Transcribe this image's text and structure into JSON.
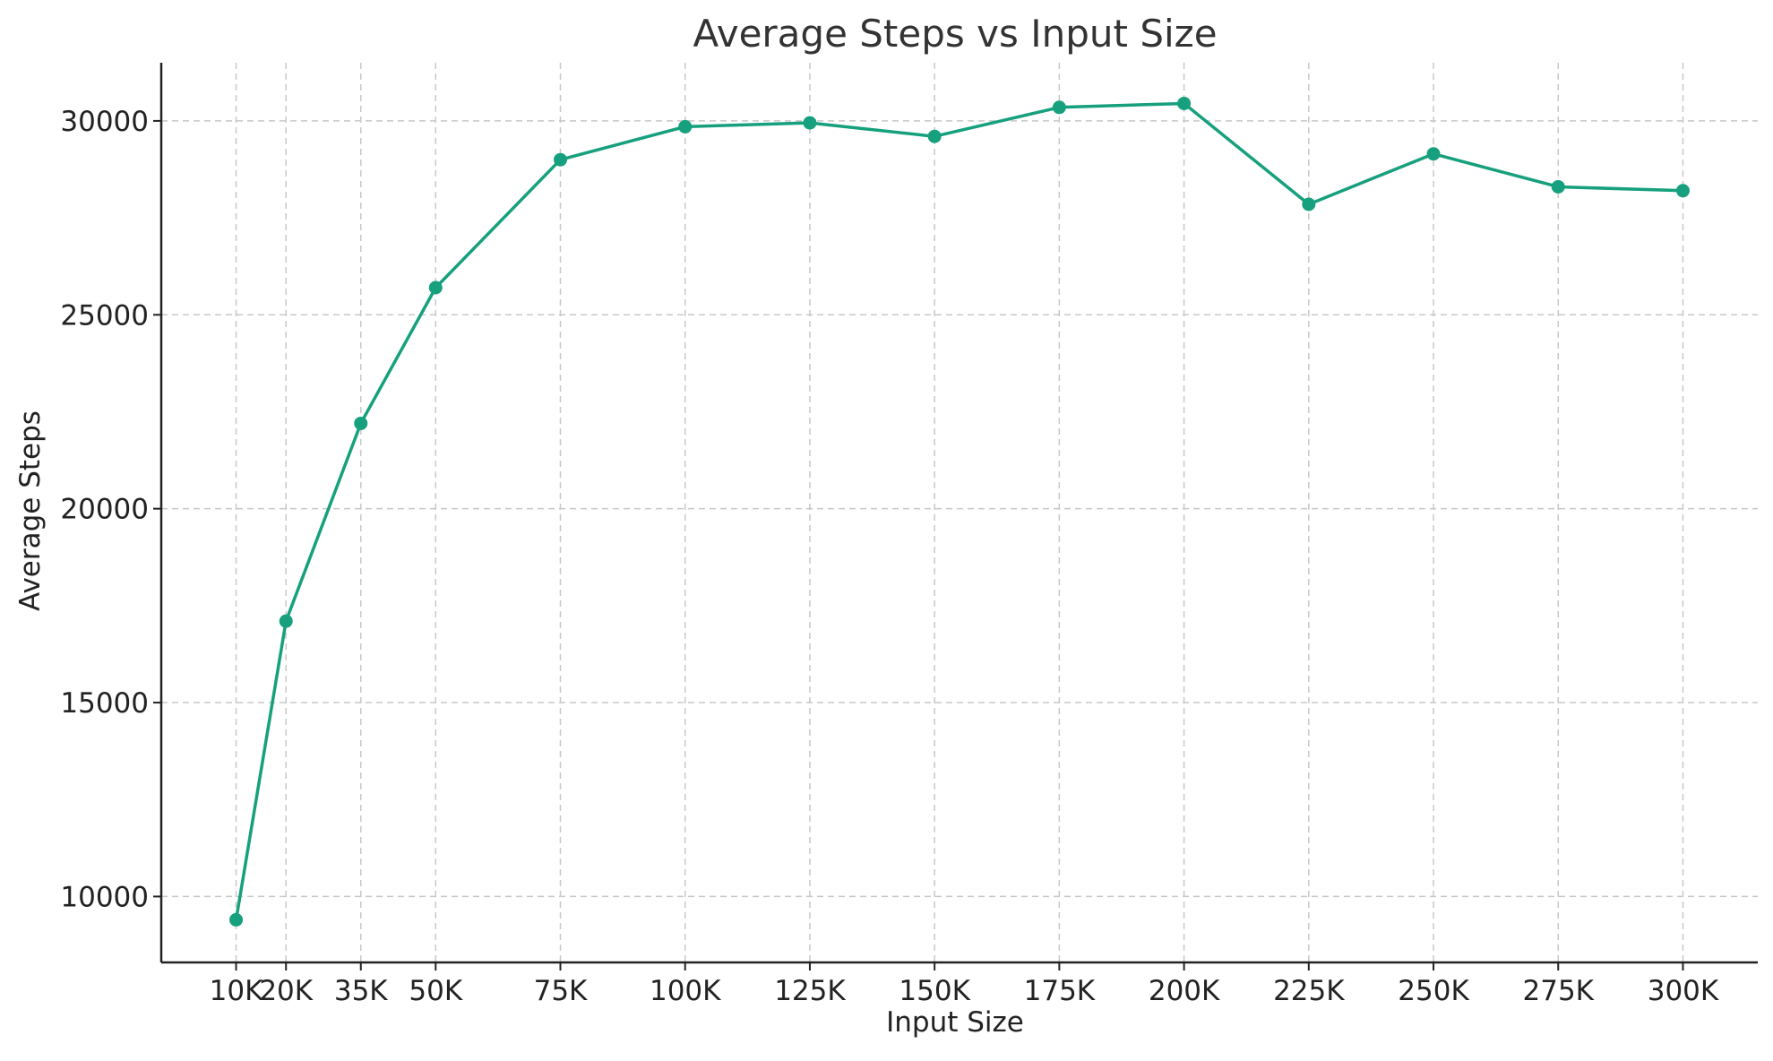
{
  "chart_data": {
    "type": "line",
    "title": "Average Steps vs Input Size",
    "xlabel": "Input Size",
    "ylabel": "Average Steps",
    "x": [
      10000,
      20000,
      35000,
      50000,
      75000,
      100000,
      125000,
      150000,
      175000,
      200000,
      225000,
      250000,
      275000,
      300000
    ],
    "x_tick_labels": [
      "10K",
      "20K",
      "35K",
      "50K",
      "75K",
      "100K",
      "125K",
      "150K",
      "175K",
      "200K",
      "225K",
      "250K",
      "275K",
      "300K"
    ],
    "y_ticks": [
      10000,
      15000,
      20000,
      25000,
      30000
    ],
    "xlim": [
      -5000,
      315000
    ],
    "ylim": [
      8300,
      31500
    ],
    "grid": true,
    "series": [
      {
        "values": [
          9400,
          17100,
          22200,
          25700,
          29000,
          29850,
          29950,
          29600,
          30350,
          30450,
          27850,
          29150,
          28300,
          28200
        ],
        "color": "#16a07d"
      }
    ]
  }
}
